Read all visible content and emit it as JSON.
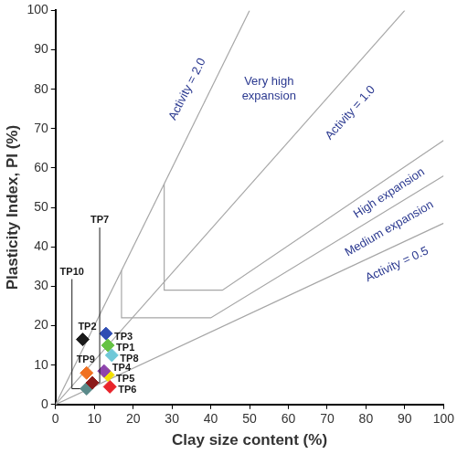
{
  "chart_data": {
    "type": "scatter",
    "x_label": "Clay size content (%)",
    "y_label": "Plasticity Index, PI (%)",
    "xlim": [
      0,
      100
    ],
    "ylim": [
      0,
      100
    ],
    "xticks": [
      0,
      10,
      20,
      30,
      40,
      50,
      60,
      70,
      80,
      90,
      100
    ],
    "yticks": [
      0,
      10,
      20,
      30,
      40,
      50,
      60,
      70,
      80,
      90,
      100
    ],
    "grid": false,
    "marker": "diamond",
    "annotations": [
      "Activity = 2.0",
      "Very high expansion",
      "Activity = 1.0",
      "High expansion",
      "Medium expansion",
      "Activity = 0.5"
    ],
    "lines": [
      {
        "color": "#a6a6a6",
        "x": [
          0,
          50
        ],
        "values": [
          0,
          100
        ]
      },
      {
        "color": "#a6a6a6",
        "x": [
          0,
          90
        ],
        "values": [
          0,
          100
        ]
      },
      {
        "color": "#a6a6a6",
        "x": [
          28,
          28,
          43,
          100
        ],
        "values": [
          56,
          29,
          29,
          67
        ]
      },
      {
        "color": "#a6a6a6",
        "x": [
          17,
          17,
          40,
          100
        ],
        "values": [
          34,
          22,
          22,
          58
        ]
      },
      {
        "color": "#a6a6a6",
        "x": [
          0,
          100
        ],
        "values": [
          0,
          46
        ]
      }
    ],
    "series": [
      {
        "name": "TP1",
        "color": "#66c244",
        "x": [
          13.5
        ],
        "values": [
          15
        ]
      },
      {
        "name": "TP2",
        "color": "#1a1a1a",
        "x": [
          7
        ],
        "values": [
          16.5
        ]
      },
      {
        "name": "TP3",
        "color": "#2e4db3",
        "x": [
          13
        ],
        "values": [
          18
        ]
      },
      {
        "name": "TP4",
        "color": "#8e44ad",
        "x": [
          12.5
        ],
        "values": [
          8.5
        ]
      },
      {
        "name": "TP5",
        "color": "#f2e100",
        "x": [
          13.5
        ],
        "values": [
          7.5
        ]
      },
      {
        "name": "TP6",
        "color": "#e8242b",
        "x": [
          14
        ],
        "values": [
          4.5
        ]
      },
      {
        "name": "TP7",
        "color": "#8b1a1a",
        "x": [
          9.5
        ],
        "values": [
          5.5
        ]
      },
      {
        "name": "TP8",
        "color": "#6fc8d8",
        "x": [
          14.5
        ],
        "values": [
          12.5
        ]
      },
      {
        "name": "TP9",
        "color": "#f07020",
        "x": [
          8
        ],
        "values": [
          8
        ]
      },
      {
        "name": "TP10",
        "color": "#5a8a8a",
        "x": [
          8
        ],
        "values": [
          4
        ]
      }
    ]
  }
}
